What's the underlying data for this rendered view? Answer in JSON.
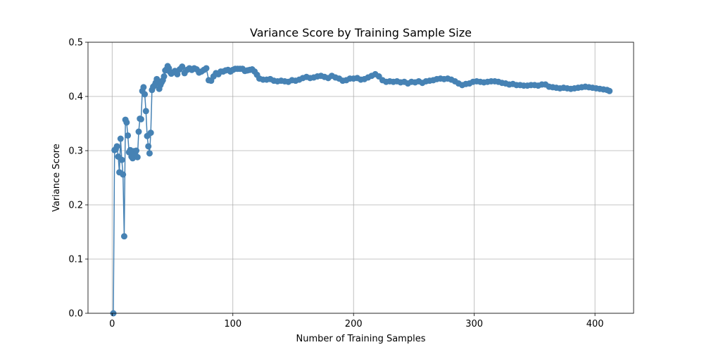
{
  "chart_data": {
    "type": "line",
    "title": "Variance Score by Training Sample Size",
    "xlabel": "Number of Training Samples",
    "ylabel": "Variance Score",
    "xlim": [
      -20,
      432
    ],
    "ylim": [
      0,
      0.5
    ],
    "xticks": [
      0,
      100,
      200,
      300,
      400
    ],
    "xtick_labels": [
      "0",
      "100",
      "200",
      "300",
      "400"
    ],
    "yticks": [
      0,
      0.1,
      0.2,
      0.3,
      0.4,
      0.5
    ],
    "ytick_labels": [
      "0.0",
      "0.1",
      "0.2",
      "0.3",
      "0.4",
      "0.5"
    ],
    "grid": true,
    "marker": "circle",
    "series": [
      {
        "color": "#4682b4",
        "points": [
          [
            1,
            0.0
          ],
          [
            2,
            0.301
          ],
          [
            3,
            0.303
          ],
          [
            4,
            0.308
          ],
          [
            5,
            0.289
          ],
          [
            6,
            0.26
          ],
          [
            7,
            0.322
          ],
          [
            8,
            0.283
          ],
          [
            9,
            0.256
          ],
          [
            10,
            0.142
          ],
          [
            11,
            0.357
          ],
          [
            12,
            0.352
          ],
          [
            13,
            0.328
          ],
          [
            14,
            0.297
          ],
          [
            15,
            0.301
          ],
          [
            16,
            0.289
          ],
          [
            17,
            0.286
          ],
          [
            18,
            0.299
          ],
          [
            19,
            0.293
          ],
          [
            20,
            0.3
          ],
          [
            21,
            0.288
          ],
          [
            22,
            0.335
          ],
          [
            23,
            0.359
          ],
          [
            24,
            0.358
          ],
          [
            25,
            0.41
          ],
          [
            26,
            0.417
          ],
          [
            27,
            0.404
          ],
          [
            28,
            0.373
          ],
          [
            29,
            0.327
          ],
          [
            30,
            0.308
          ],
          [
            31,
            0.295
          ],
          [
            32,
            0.333
          ],
          [
            33,
            0.412
          ],
          [
            34,
            0.418
          ],
          [
            35,
            0.42
          ],
          [
            36,
            0.425
          ],
          [
            37,
            0.432
          ],
          [
            38,
            0.428
          ],
          [
            39,
            0.414
          ],
          [
            40,
            0.421
          ],
          [
            41,
            0.426
          ],
          [
            42,
            0.43
          ],
          [
            43,
            0.437
          ],
          [
            44,
            0.448
          ],
          [
            45,
            0.45
          ],
          [
            46,
            0.456
          ],
          [
            47,
            0.452
          ],
          [
            48,
            0.445
          ],
          [
            49,
            0.442
          ],
          [
            50,
            0.444
          ],
          [
            52,
            0.447
          ],
          [
            54,
            0.441
          ],
          [
            56,
            0.45
          ],
          [
            58,
            0.455
          ],
          [
            60,
            0.443
          ],
          [
            62,
            0.449
          ],
          [
            64,
            0.452
          ],
          [
            66,
            0.449
          ],
          [
            68,
            0.452
          ],
          [
            70,
            0.45
          ],
          [
            72,
            0.444
          ],
          [
            74,
            0.446
          ],
          [
            76,
            0.449
          ],
          [
            78,
            0.452
          ],
          [
            80,
            0.43
          ],
          [
            82,
            0.429
          ],
          [
            84,
            0.437
          ],
          [
            86,
            0.443
          ],
          [
            88,
            0.441
          ],
          [
            90,
            0.446
          ],
          [
            92,
            0.446
          ],
          [
            94,
            0.448
          ],
          [
            96,
            0.449
          ],
          [
            98,
            0.446
          ],
          [
            100,
            0.449
          ],
          [
            102,
            0.451
          ],
          [
            104,
            0.451
          ],
          [
            106,
            0.451
          ],
          [
            108,
            0.451
          ],
          [
            110,
            0.447
          ],
          [
            112,
            0.448
          ],
          [
            114,
            0.449
          ],
          [
            116,
            0.45
          ],
          [
            118,
            0.446
          ],
          [
            120,
            0.44
          ],
          [
            122,
            0.433
          ],
          [
            125,
            0.431
          ],
          [
            128,
            0.431
          ],
          [
            131,
            0.432
          ],
          [
            134,
            0.429
          ],
          [
            137,
            0.428
          ],
          [
            140,
            0.429
          ],
          [
            143,
            0.428
          ],
          [
            146,
            0.427
          ],
          [
            149,
            0.43
          ],
          [
            152,
            0.429
          ],
          [
            155,
            0.431
          ],
          [
            158,
            0.434
          ],
          [
            161,
            0.436
          ],
          [
            164,
            0.434
          ],
          [
            167,
            0.435
          ],
          [
            170,
            0.437
          ],
          [
            173,
            0.438
          ],
          [
            176,
            0.436
          ],
          [
            179,
            0.434
          ],
          [
            182,
            0.438
          ],
          [
            185,
            0.435
          ],
          [
            188,
            0.433
          ],
          [
            191,
            0.429
          ],
          [
            194,
            0.43
          ],
          [
            197,
            0.433
          ],
          [
            200,
            0.433
          ],
          [
            203,
            0.434
          ],
          [
            206,
            0.431
          ],
          [
            209,
            0.432
          ],
          [
            212,
            0.435
          ],
          [
            215,
            0.438
          ],
          [
            218,
            0.441
          ],
          [
            221,
            0.437
          ],
          [
            224,
            0.43
          ],
          [
            227,
            0.427
          ],
          [
            230,
            0.428
          ],
          [
            233,
            0.427
          ],
          [
            236,
            0.428
          ],
          [
            239,
            0.426
          ],
          [
            242,
            0.427
          ],
          [
            245,
            0.424
          ],
          [
            248,
            0.427
          ],
          [
            251,
            0.426
          ],
          [
            254,
            0.428
          ],
          [
            257,
            0.425
          ],
          [
            260,
            0.428
          ],
          [
            263,
            0.429
          ],
          [
            266,
            0.43
          ],
          [
            269,
            0.432
          ],
          [
            272,
            0.433
          ],
          [
            275,
            0.432
          ],
          [
            278,
            0.433
          ],
          [
            281,
            0.431
          ],
          [
            284,
            0.428
          ],
          [
            287,
            0.424
          ],
          [
            290,
            0.421
          ],
          [
            293,
            0.423
          ],
          [
            296,
            0.424
          ],
          [
            299,
            0.427
          ],
          [
            302,
            0.428
          ],
          [
            305,
            0.427
          ],
          [
            308,
            0.426
          ],
          [
            311,
            0.427
          ],
          [
            314,
            0.428
          ],
          [
            317,
            0.428
          ],
          [
            320,
            0.427
          ],
          [
            323,
            0.425
          ],
          [
            326,
            0.424
          ],
          [
            329,
            0.422
          ],
          [
            332,
            0.423
          ],
          [
            335,
            0.421
          ],
          [
            338,
            0.421
          ],
          [
            341,
            0.42
          ],
          [
            344,
            0.42
          ],
          [
            347,
            0.421
          ],
          [
            350,
            0.421
          ],
          [
            353,
            0.42
          ],
          [
            356,
            0.422
          ],
          [
            359,
            0.422
          ],
          [
            362,
            0.418
          ],
          [
            365,
            0.417
          ],
          [
            368,
            0.416
          ],
          [
            371,
            0.415
          ],
          [
            374,
            0.416
          ],
          [
            377,
            0.415
          ],
          [
            380,
            0.414
          ],
          [
            383,
            0.415
          ],
          [
            386,
            0.416
          ],
          [
            389,
            0.417
          ],
          [
            392,
            0.418
          ],
          [
            395,
            0.417
          ],
          [
            398,
            0.416
          ],
          [
            401,
            0.415
          ],
          [
            404,
            0.414
          ],
          [
            407,
            0.413
          ],
          [
            410,
            0.412
          ],
          [
            412,
            0.41
          ]
        ]
      }
    ]
  }
}
